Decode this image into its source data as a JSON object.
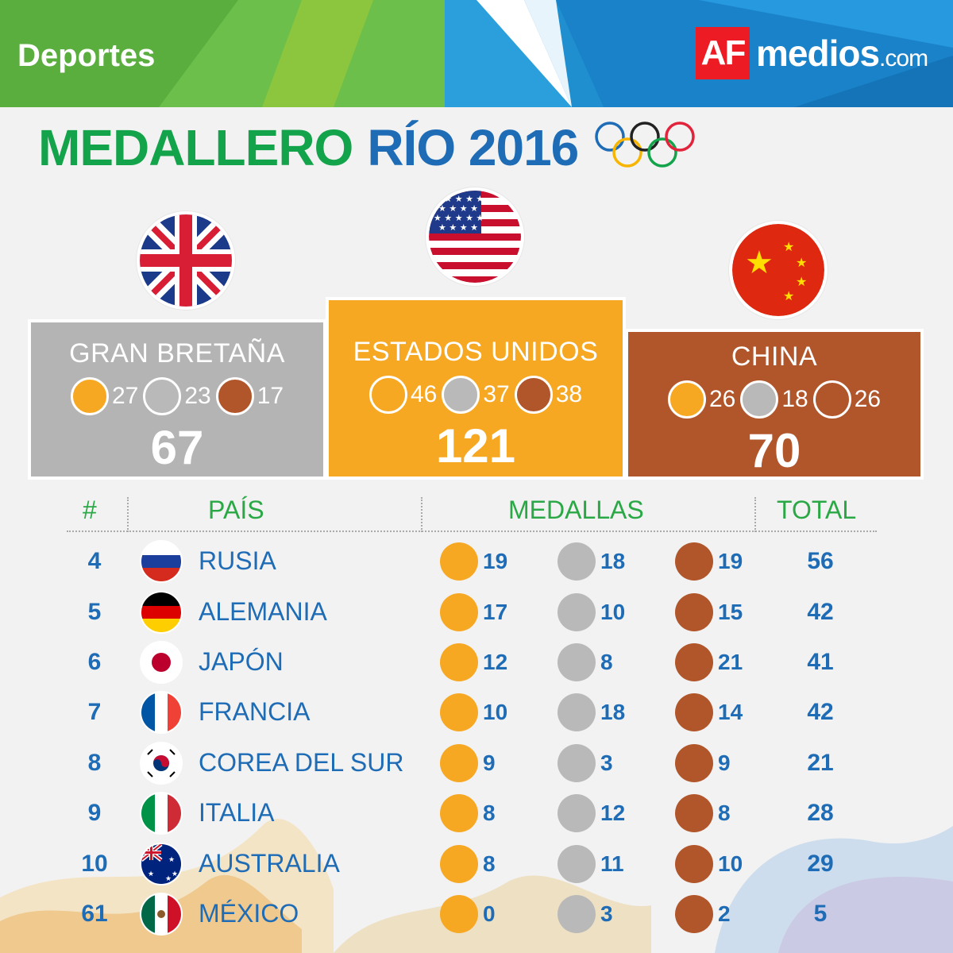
{
  "header": {
    "section": "Deportes",
    "brand_mark": "AF",
    "brand_name": "medios",
    "brand_suffix": ".com"
  },
  "title": {
    "part1": "MEDALLERO",
    "part2": "RÍO 2016"
  },
  "table_headers": {
    "rank": "#",
    "country": "PAÍS",
    "medals": "MEDALLAS",
    "total": "TOTAL"
  },
  "colors": {
    "gold": "#f7a823",
    "silver": "#b9b9b9",
    "bronze": "#b1552a",
    "green": "#13a34a",
    "blue": "#1f6cb6"
  },
  "podium": [
    {
      "position": 2,
      "country": "GRAN BRETAÑA",
      "flag": "uk-flag-icon",
      "gold": "27",
      "silver": "23",
      "bronze": "17",
      "total": "67"
    },
    {
      "position": 1,
      "country": "ESTADOS UNIDOS",
      "flag": "usa-flag-icon",
      "gold": "46",
      "silver": "37",
      "bronze": "38",
      "total": "121"
    },
    {
      "position": 3,
      "country": "CHINA",
      "flag": "china-flag-icon",
      "gold": "26",
      "silver": "18",
      "bronze": "26",
      "total": "70"
    }
  ],
  "rows": [
    {
      "rank": "4",
      "country": "RUSIA",
      "flag": "russia-flag-icon",
      "gold": "19",
      "silver": "18",
      "bronze": "19",
      "total": "56"
    },
    {
      "rank": "5",
      "country": "ALEMANIA",
      "flag": "germany-flag-icon",
      "gold": "17",
      "silver": "10",
      "bronze": "15",
      "total": "42"
    },
    {
      "rank": "6",
      "country": "JAPÓN",
      "flag": "japan-flag-icon",
      "gold": "12",
      "silver": "8",
      "bronze": "21",
      "total": "41"
    },
    {
      "rank": "7",
      "country": "FRANCIA",
      "flag": "france-flag-icon",
      "gold": "10",
      "silver": "18",
      "bronze": "14",
      "total": "42"
    },
    {
      "rank": "8",
      "country": "COREA DEL SUR",
      "flag": "south-korea-flag-icon",
      "gold": "9",
      "silver": "3",
      "bronze": "9",
      "total": "21"
    },
    {
      "rank": "9",
      "country": "ITALIA",
      "flag": "italy-flag-icon",
      "gold": "8",
      "silver": "12",
      "bronze": "8",
      "total": "28"
    },
    {
      "rank": "10",
      "country": "AUSTRALIA",
      "flag": "australia-flag-icon",
      "gold": "8",
      "silver": "11",
      "bronze": "10",
      "total": "29"
    },
    {
      "rank": "61",
      "country": "MÉXICO",
      "flag": "mexico-flag-icon",
      "gold": "0",
      "silver": "3",
      "bronze": "2",
      "total": "5"
    }
  ]
}
